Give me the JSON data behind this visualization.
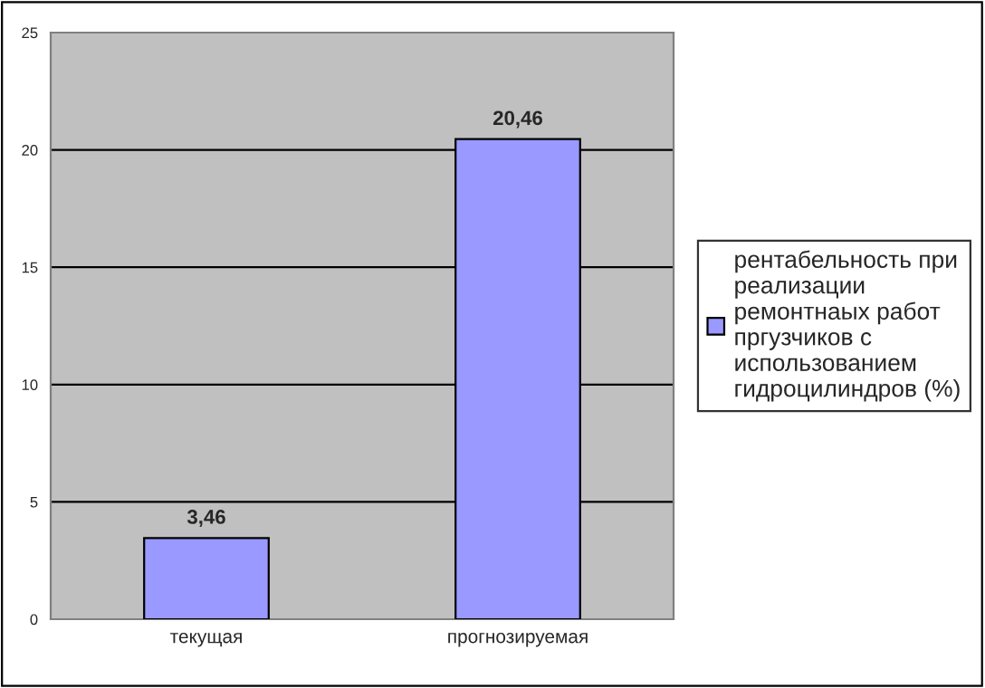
{
  "chart_data": {
    "type": "bar",
    "categories": [
      "текущая",
      "прогнозируемая"
    ],
    "series": [
      {
        "name": "рентабельность при\nреализации\nремонтнаых работ\nпргузчиков с\nиспользованием\nгидроцилиндров (%)",
        "color": "#9999ff",
        "values": [
          3.46,
          20.46
        ],
        "value_labels": [
          "3,46",
          "20,46"
        ]
      }
    ],
    "ylim": [
      0,
      25
    ],
    "yticks": [
      0,
      5,
      10,
      15,
      20,
      25
    ],
    "grid": "y",
    "legend": "right"
  }
}
